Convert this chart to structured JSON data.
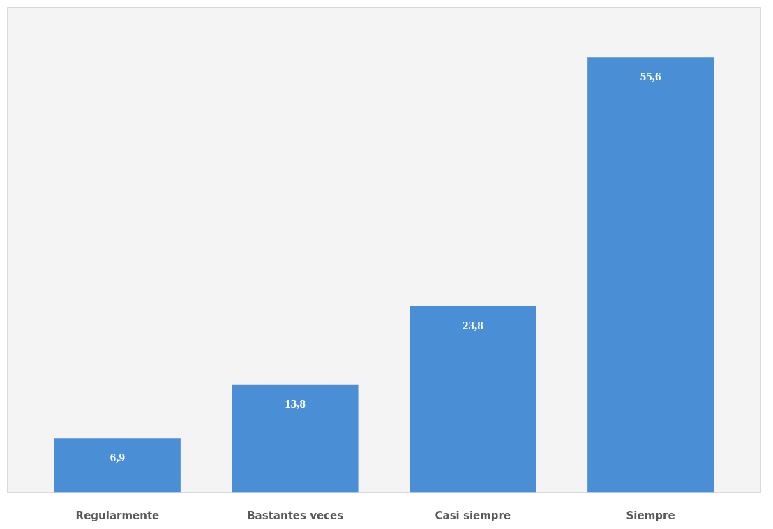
{
  "chart_data": {
    "type": "bar",
    "categories": [
      "Regularmente",
      "Bastantes veces",
      "Casi siempre",
      "Siempre"
    ],
    "values": [
      6.9,
      13.8,
      23.8,
      55.6
    ],
    "value_labels": [
      "6,9",
      "13,8",
      "23,8",
      "55,6"
    ],
    "color": "#4a8fd6",
    "ylim": [
      0,
      62
    ],
    "tick_labels": "x",
    "grid": false
  }
}
